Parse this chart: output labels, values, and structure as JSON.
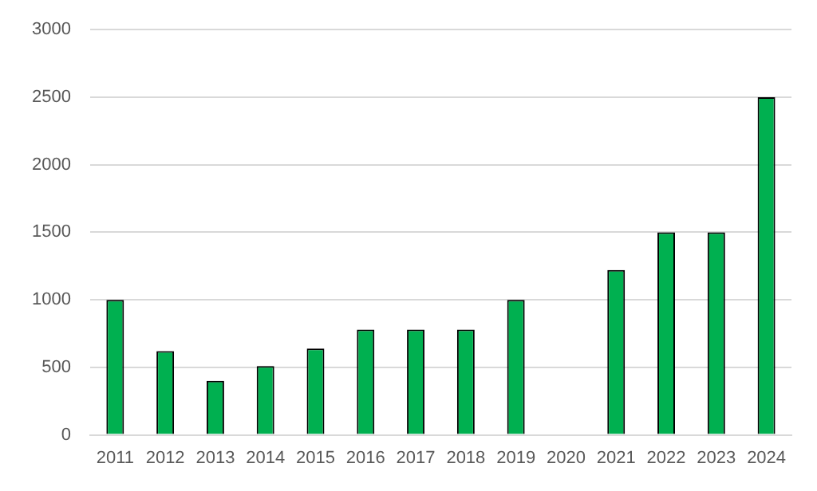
{
  "chart_data": {
    "type": "bar",
    "categories": [
      "2011",
      "2012",
      "2013",
      "2014",
      "2015",
      "2016",
      "2017",
      "2018",
      "2019",
      "2020",
      "2021",
      "2022",
      "2023",
      "2024"
    ],
    "values": [
      1000,
      620,
      400,
      510,
      640,
      780,
      780,
      780,
      1000,
      null,
      1220,
      1500,
      1500,
      2500
    ],
    "color": "#00b050",
    "ylim": [
      0,
      3000
    ],
    "yticks": [
      0,
      500,
      1000,
      1500,
      2000,
      2500,
      3000
    ],
    "grid": "y",
    "legend": false
  }
}
